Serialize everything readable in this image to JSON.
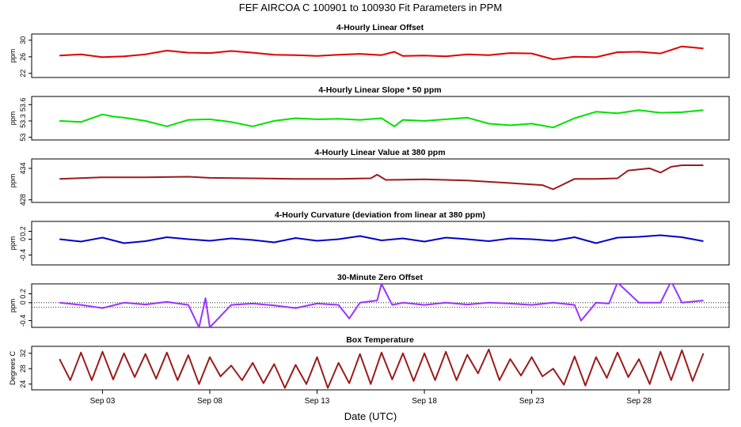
{
  "figure": {
    "title": "FEF   AIRCOA C   100901 to 100930   Fit Parameters in PPM",
    "xlabel": "Date (UTC)",
    "x_ticks": [
      "Sep 03",
      "Sep 08",
      "Sep 13",
      "Sep 18",
      "Sep 23",
      "Sep 28"
    ]
  },
  "chart_data": [
    {
      "type": "line",
      "title": "4-Hourly Linear Offset",
      "ylabel": "ppm",
      "color": "#e00000",
      "x": [
        1.0,
        2.0,
        3.0,
        4.0,
        5.0,
        6.0,
        7.0,
        8.0,
        9.0,
        10.0,
        11.0,
        12.0,
        13.0,
        14.0,
        15.0,
        16.0,
        16.6,
        17.0,
        18.0,
        19.0,
        20.0,
        21.0,
        22.0,
        23.0,
        24.0,
        25.0,
        26.0,
        27.0,
        28.0,
        29.0,
        30.0,
        31.0
      ],
      "series": [
        {
          "values": [
            26.3,
            26.6,
            25.9,
            26.1,
            26.6,
            27.5,
            27.0,
            26.9,
            27.4,
            27.0,
            26.5,
            26.4,
            26.2,
            26.5,
            26.7,
            26.4,
            27.2,
            26.2,
            26.3,
            26.1,
            26.6,
            26.4,
            26.9,
            26.8,
            25.4,
            26.0,
            25.9,
            27.1,
            27.2,
            26.8,
            28.5,
            28.0
          ]
        }
      ],
      "yticks": [
        22,
        26,
        30
      ],
      "ylim": [
        21,
        31.5
      ],
      "grid": false
    },
    {
      "type": "line",
      "title": "4-Hourly Linear Slope * 50 ppm",
      "ylabel": "ppm",
      "color": "#00e000",
      "x": [
        1.0,
        2.0,
        3.0,
        3.5,
        4.0,
        5.0,
        6.0,
        7.0,
        8.0,
        9.0,
        10.0,
        11.0,
        12.0,
        13.0,
        14.0,
        15.0,
        16.0,
        16.6,
        17.0,
        18.0,
        19.0,
        20.0,
        21.0,
        22.0,
        23.0,
        24.0,
        25.0,
        26.0,
        27.0,
        28.0,
        29.0,
        30.0,
        31.0
      ],
      "series": [
        {
          "values": [
            53.3,
            53.28,
            53.42,
            53.38,
            53.36,
            53.3,
            53.2,
            53.32,
            53.33,
            53.28,
            53.2,
            53.3,
            53.35,
            53.33,
            53.34,
            53.32,
            53.35,
            53.2,
            53.32,
            53.3,
            53.33,
            53.36,
            53.25,
            53.22,
            53.25,
            53.18,
            53.35,
            53.47,
            53.44,
            53.5,
            53.45,
            53.46,
            53.5
          ]
        }
      ],
      "yticks": [
        53.0,
        53.3,
        53.6
      ],
      "ylim": [
        52.95,
        53.75
      ],
      "grid": false
    },
    {
      "type": "line",
      "title": "4-Hourly Linear Value at 380 ppm",
      "ylabel": "ppm",
      "color": "#9b1b1b",
      "x": [
        1.0,
        3.0,
        5.0,
        7.0,
        8.0,
        10.0,
        12.0,
        14.0,
        15.5,
        15.8,
        16.2,
        18.0,
        20.0,
        22.0,
        23.5,
        24.0,
        25.0,
        26.0,
        27.0,
        27.5,
        28.5,
        29.0,
        29.5,
        30.0,
        31.0
      ],
      "series": [
        {
          "values": [
            432.0,
            432.3,
            432.3,
            432.4,
            432.2,
            432.1,
            432.0,
            432.0,
            432.1,
            432.8,
            431.8,
            431.9,
            431.7,
            431.2,
            430.8,
            430.0,
            432.0,
            432.0,
            432.1,
            433.6,
            434.0,
            433.2,
            434.3,
            434.6,
            434.6
          ]
        }
      ],
      "yticks": [
        428,
        434
      ],
      "ylim": [
        427.5,
        435.8
      ],
      "grid": false
    },
    {
      "type": "line",
      "title": "4-Hourly Curvature (deviation from linear at 380 ppm)",
      "ylabel": "ppm",
      "color": "#0000cc",
      "x": [
        1.0,
        2.0,
        3.0,
        4.0,
        5.0,
        6.0,
        7.0,
        8.0,
        9.0,
        10.0,
        11.0,
        12.0,
        13.0,
        14.0,
        15.0,
        16.0,
        17.0,
        18.0,
        19.0,
        20.0,
        21.0,
        22.0,
        23.0,
        24.0,
        25.0,
        26.0,
        27.0,
        28.0,
        29.0,
        30.0,
        31.0
      ],
      "series": [
        {
          "values": [
            0.0,
            -0.06,
            0.04,
            -0.1,
            -0.05,
            0.05,
            0.0,
            -0.04,
            0.02,
            -0.02,
            -0.08,
            0.03,
            -0.04,
            0.0,
            0.08,
            -0.03,
            0.02,
            -0.06,
            0.04,
            0.0,
            -0.05,
            0.02,
            0.0,
            -0.04,
            0.05,
            -0.1,
            0.04,
            0.06,
            0.1,
            0.05,
            -0.05
          ]
        }
      ],
      "yticks": [
        -0.4,
        0.0,
        0.2
      ],
      "ylim": [
        -0.65,
        0.45
      ],
      "grid": false
    },
    {
      "type": "line",
      "title": "30-Minute Zero Offset",
      "ylabel": "ppm",
      "color": "#9933ff",
      "x": [
        1.0,
        2.0,
        3.0,
        4.0,
        5.0,
        6.0,
        7.0,
        7.5,
        7.8,
        8.0,
        9.0,
        10.0,
        11.0,
        12.0,
        13.0,
        14.0,
        14.5,
        15.0,
        15.8,
        16.0,
        16.5,
        17.0,
        18.0,
        19.0,
        20.0,
        21.0,
        22.0,
        23.0,
        24.0,
        25.0,
        25.3,
        26.0,
        26.6,
        27.0,
        28.0,
        29.0,
        29.5,
        30.0,
        31.0
      ],
      "series": [
        {
          "values": [
            0.0,
            -0.05,
            -0.12,
            0.0,
            -0.04,
            0.02,
            -0.05,
            -0.55,
            0.1,
            -0.55,
            -0.05,
            -0.02,
            -0.06,
            -0.12,
            -0.02,
            -0.05,
            -0.35,
            0.0,
            0.05,
            0.42,
            -0.05,
            0.0,
            -0.05,
            0.0,
            -0.04,
            0.0,
            -0.02,
            -0.05,
            0.0,
            -0.05,
            -0.4,
            0.0,
            -0.02,
            0.45,
            0.0,
            0.0,
            0.48,
            0.0,
            0.05
          ]
        }
      ],
      "reference_lines": [
        0.0,
        -0.1
      ],
      "yticks": [
        -0.4,
        0.0,
        0.2
      ],
      "ylim": [
        -0.55,
        0.42
      ],
      "grid": false
    },
    {
      "type": "line",
      "title": "Box Temperature",
      "ylabel": "Degrees C",
      "color": "#9b1b1b",
      "x": [
        1.0,
        1.5,
        2.0,
        2.5,
        3.0,
        3.5,
        4.0,
        4.5,
        5.0,
        5.5,
        6.0,
        6.5,
        7.0,
        7.5,
        8.0,
        8.5,
        9.0,
        9.5,
        10.0,
        10.5,
        11.0,
        11.5,
        12.0,
        12.5,
        13.0,
        13.5,
        14.0,
        14.5,
        15.0,
        15.5,
        16.0,
        16.5,
        17.0,
        17.5,
        18.0,
        18.5,
        19.0,
        19.5,
        20.0,
        20.5,
        21.0,
        21.5,
        22.0,
        22.5,
        23.0,
        23.5,
        24.0,
        24.5,
        25.0,
        25.5,
        26.0,
        26.5,
        27.0,
        27.5,
        28.0,
        28.5,
        29.0,
        29.5,
        30.0,
        30.5,
        31.0
      ],
      "series": [
        {
          "values": [
            30.5,
            25.0,
            32.2,
            25.0,
            32.4,
            25.2,
            32.0,
            25.8,
            31.8,
            25.4,
            32.2,
            25.0,
            31.5,
            24.0,
            31.0,
            26.0,
            28.8,
            25.0,
            29.5,
            24.2,
            29.2,
            23.0,
            29.0,
            24.0,
            31.0,
            23.0,
            29.5,
            24.2,
            31.8,
            24.0,
            32.2,
            25.2,
            32.0,
            24.8,
            32.0,
            25.0,
            32.4,
            25.0,
            31.6,
            26.8,
            33.0,
            25.0,
            30.5,
            26.2,
            31.0,
            26.0,
            28.0,
            23.8,
            31.2,
            23.6,
            31.0,
            25.6,
            32.2,
            25.8,
            30.5,
            24.0,
            32.4,
            25.0,
            32.8,
            24.8,
            32.0
          ]
        }
      ],
      "yticks": [
        24,
        28,
        32
      ],
      "ylim": [
        22.5,
        33.8
      ],
      "grid": false
    }
  ]
}
